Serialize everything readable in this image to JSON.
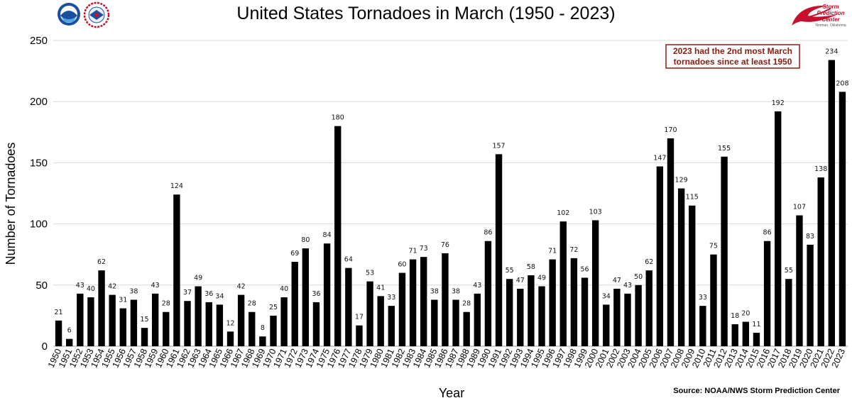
{
  "header": {
    "logo_left_1": "noaa-logo",
    "logo_left_2": "nws-logo",
    "logo_right_lines": [
      "Storm",
      "Prediction",
      "Center"
    ],
    "logo_right_tagline": "Norman, Oklahoma"
  },
  "annotation": {
    "lines": [
      "2023 had the 2nd most March",
      "tornadoes since at least 1950"
    ],
    "color": "#8b1a10"
  },
  "source": "Source: NOAA/NWS Storm Prediction Center",
  "chart_data": {
    "type": "bar",
    "title": "United States Tornadoes in March (1950 - 2023)",
    "xlabel": "Year",
    "ylabel": "Number of Tornadoes",
    "ylim": [
      0,
      250
    ],
    "yticks": [
      0,
      50,
      100,
      150,
      200,
      250
    ],
    "grid": true,
    "bar_color": "#000000",
    "categories": [
      "1950",
      "1951",
      "1952",
      "1953",
      "1954",
      "1955",
      "1956",
      "1957",
      "1958",
      "1959",
      "1960",
      "1961",
      "1962",
      "1963",
      "1964",
      "1965",
      "1966",
      "1967",
      "1968",
      "1969",
      "1970",
      "1971",
      "1972",
      "1973",
      "1974",
      "1975",
      "1976",
      "1977",
      "1978",
      "1979",
      "1980",
      "1981",
      "1982",
      "1983",
      "1984",
      "1985",
      "1986",
      "1987",
      "1988",
      "1989",
      "1990",
      "1991",
      "1992",
      "1993",
      "1994",
      "1995",
      "1996",
      "1997",
      "1998",
      "1999",
      "2000",
      "2001",
      "2002",
      "2003",
      "2004",
      "2005",
      "2006",
      "2007",
      "2008",
      "2009",
      "2010",
      "2011",
      "2012",
      "2013",
      "2014",
      "2015",
      "2016",
      "2017",
      "2018",
      "2019",
      "2020",
      "2021",
      "2022",
      "2023"
    ],
    "values": [
      21,
      6,
      43,
      40,
      62,
      42,
      31,
      38,
      15,
      43,
      28,
      124,
      37,
      49,
      36,
      34,
      12,
      42,
      28,
      8,
      25,
      40,
      69,
      80,
      36,
      84,
      180,
      64,
      17,
      53,
      41,
      33,
      60,
      71,
      73,
      38,
      76,
      38,
      28,
      43,
      86,
      157,
      55,
      47,
      58,
      49,
      71,
      102,
      72,
      56,
      103,
      34,
      47,
      43,
      50,
      62,
      147,
      170,
      129,
      115,
      33,
      75,
      155,
      18,
      20,
      11,
      86,
      192,
      55,
      107,
      83,
      138,
      234,
      208
    ]
  }
}
